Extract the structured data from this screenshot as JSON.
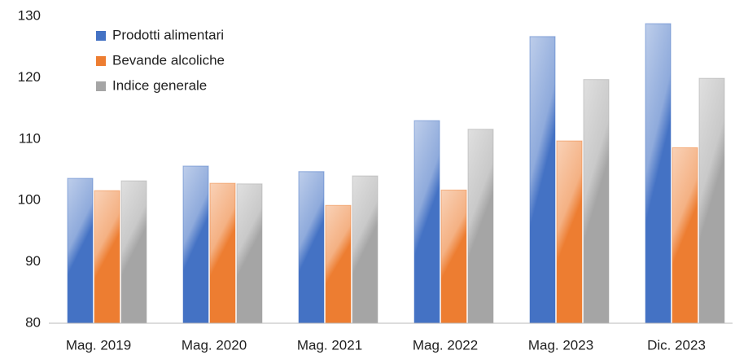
{
  "chart_data": {
    "type": "bar",
    "categories": [
      "Mag. 2019",
      "Mag. 2020",
      "Mag. 2021",
      "Mag. 2022",
      "Mag. 2023",
      "Dic. 2023"
    ],
    "series": [
      {
        "name": "Prodotti alimentari",
        "color": "#4472c4",
        "values": [
          103.6,
          105.6,
          104.7,
          113.0,
          126.7,
          128.8
        ]
      },
      {
        "name": "Bevande alcoliche",
        "color": "#ed7d31",
        "values": [
          101.6,
          102.8,
          99.2,
          101.7,
          109.7,
          108.6
        ]
      },
      {
        "name": "Indice generale",
        "color": "#a5a5a5",
        "values": [
          103.2,
          102.7,
          104.0,
          111.6,
          119.7,
          119.9
        ]
      }
    ],
    "ylim": [
      80,
      130
    ],
    "yticks": [
      80,
      90,
      100,
      110,
      120,
      130
    ],
    "grid": false,
    "legend": "top-left"
  }
}
